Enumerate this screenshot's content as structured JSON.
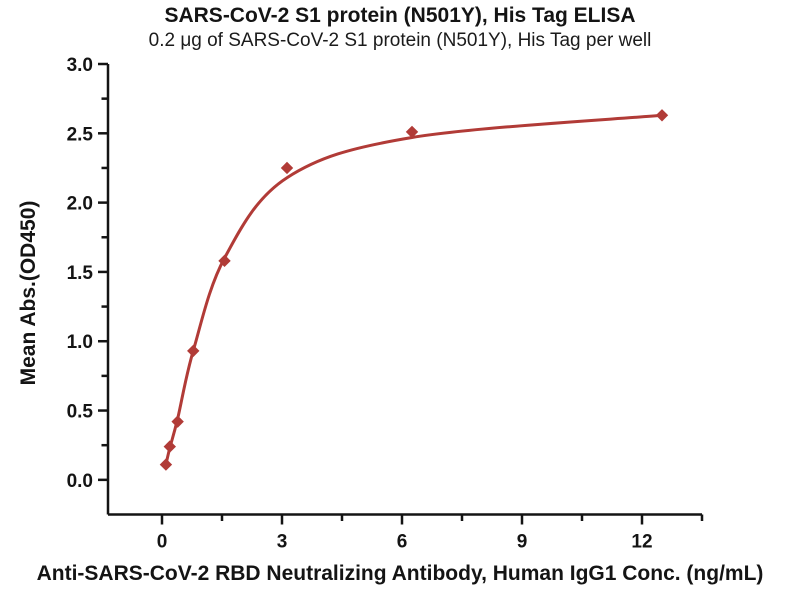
{
  "chart_data": {
    "type": "scatter",
    "title": "SARS-CoV-2 S1 protein (N501Y), His Tag ELISA",
    "subtitle": "0.2 μg of SARS-CoV-2 S1 protein (N501Y), His Tag per well",
    "xlabel": "Anti-SARS-CoV-2 RBD Neutralizing Antibody, Human IgG1 Conc. (ng/mL)",
    "ylabel": "Mean Abs.(OD450)",
    "x": [
      0.098,
      0.195,
      0.391,
      0.781,
      1.563,
      3.125,
      6.25,
      12.5
    ],
    "y": [
      0.11,
      0.24,
      0.42,
      0.93,
      1.58,
      2.25,
      2.51,
      2.63
    ],
    "fit_curve_y": [
      0.11,
      0.23,
      0.44,
      0.93,
      1.6,
      2.18,
      2.47,
      2.63
    ],
    "xlim": [
      -1.35,
      13.5
    ],
    "ylim": [
      -0.25,
      3.0
    ],
    "x_major_ticks": [
      0,
      3,
      6,
      9,
      12
    ],
    "x_major_labels": [
      "0",
      "3",
      "6",
      "9",
      "12"
    ],
    "x_minor_ticks": [
      1.5,
      4.5,
      7.5,
      10.5,
      13.5
    ],
    "y_major_ticks": [
      0,
      0.5,
      1,
      1.5,
      2,
      2.5,
      3
    ],
    "y_major_labels": [
      "0.0",
      "0.5",
      "1.0",
      "1.5",
      "2.0",
      "2.5",
      "3.0"
    ],
    "y_minor_ticks": [
      0.25,
      0.75,
      1.25,
      1.75,
      2.25,
      2.75
    ],
    "grid": false,
    "legend": "none",
    "marker": "diamond",
    "colors": {
      "series": "#B13B37",
      "axis": "#141414",
      "background": "#FFFFFF"
    }
  }
}
